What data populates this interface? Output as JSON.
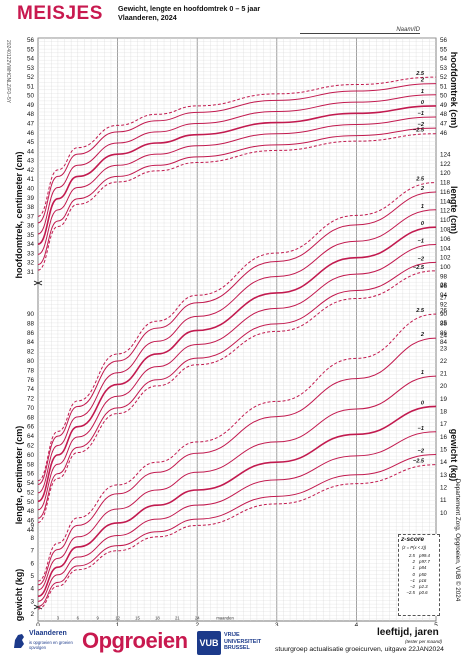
{
  "header": {
    "brand": "MEISJES",
    "subtitle_line1": "Gewicht, lengte en hoofdomtrek 0 – 5 jaar",
    "subtitle_line2": "Vlaanderen, 2024",
    "name_field": "Naam/ID",
    "side_code": "20240122VWHCNLZ/F0–5Y"
  },
  "axes": {
    "left_head": "hoofdomtrek, centimeter (cm)",
    "left_length": "lengte, centimeter (cm)",
    "left_weight": "gewicht (kg)",
    "right_head": "hoofdomtrek (cm)",
    "right_length": "lengte (cm)",
    "right_weight": "gewicht (kg)",
    "right_credit": "Departement Zorg, Opgroeien, VUB © 2024",
    "x_label": "leeftijd, jaren",
    "x_label_sub": "(tester per maand)",
    "x_months_label": "maanden"
  },
  "zscore_box": {
    "title": "z-score",
    "subtitle": "(z = P(x < z))",
    "rows": [
      {
        "z": "2.5",
        "p": "p99.4"
      },
      {
        "z": "2",
        "p": "p97.7"
      },
      {
        "z": "1",
        "p": "p84"
      },
      {
        "z": "0",
        "p": "p50"
      },
      {
        "z": "−1",
        "p": "p16"
      },
      {
        "z": "−2",
        "p": "p2.3"
      },
      {
        "z": "−2.5",
        "p": "p0.6"
      }
    ]
  },
  "footer": {
    "flanders_name": "Vlaanderen",
    "flanders_sub": "is opgroeien en groeien opvolgen",
    "opgroeien": "Opgroeien",
    "vub_logo": "VUB",
    "vub_text_1": "VRIJE",
    "vub_text_2": "UNIVERSITEIT",
    "vub_text_3": "BRUSSEL",
    "credit_line1": "stuurgroep actualisatie groeicurven, uitgave 22JAN2024",
    "credit_line2": ""
  },
  "colors": {
    "brand": "#c8194f",
    "curve": "#c21a4f",
    "grid": "#d9d9d9",
    "grid_major": "#8a8a8a"
  },
  "chart_data": [
    {
      "type": "line",
      "title": "hoofdomtrek",
      "xlabel": "leeftijd, jaren",
      "ylabel": "hoofdomtrek (cm)",
      "xlim": [
        0,
        5
      ],
      "ylim": [
        31,
        56
      ],
      "x_ticks": [
        0,
        1,
        2,
        3,
        4,
        5
      ],
      "y_ticks": [
        31,
        32,
        33,
        34,
        35,
        36,
        37,
        38,
        39,
        40,
        41,
        42,
        43,
        44,
        45,
        46,
        47,
        48,
        49,
        50,
        51,
        52,
        53,
        54,
        55,
        56
      ],
      "x": [
        0,
        0.25,
        0.5,
        1,
        1.5,
        2,
        3,
        4,
        5
      ],
      "series": [
        {
          "name": "2.5",
          "values": [
            37.0,
            42.0,
            44.4,
            46.8,
            48.0,
            48.9,
            50.2,
            51.2,
            52.0
          ]
        },
        {
          "name": "2",
          "values": [
            36.3,
            41.3,
            43.7,
            46.1,
            47.3,
            48.2,
            49.5,
            50.5,
            51.3
          ]
        },
        {
          "name": "1",
          "values": [
            35.1,
            40.1,
            42.5,
            44.9,
            46.1,
            47.0,
            48.3,
            49.3,
            50.1
          ]
        },
        {
          "name": "0",
          "values": [
            34.0,
            38.9,
            41.3,
            43.7,
            44.9,
            45.8,
            47.1,
            48.1,
            48.9
          ]
        },
        {
          "name": "−1",
          "values": [
            32.9,
            37.7,
            40.1,
            42.5,
            43.7,
            44.6,
            45.9,
            46.9,
            47.7
          ]
        },
        {
          "name": "−2",
          "values": [
            31.8,
            36.5,
            38.9,
            41.3,
            42.5,
            43.4,
            44.7,
            45.7,
            46.5
          ]
        },
        {
          "name": "−2.5",
          "values": [
            31.2,
            35.9,
            38.3,
            40.7,
            41.9,
            42.8,
            44.1,
            45.1,
            45.9
          ]
        }
      ]
    },
    {
      "type": "line",
      "title": "lengte",
      "xlabel": "leeftijd, jaren",
      "ylabel": "lengte (cm)",
      "xlim": [
        0,
        5
      ],
      "ylim": [
        44,
        126
      ],
      "y_ticks_left": [
        44,
        46,
        48,
        50,
        52,
        54,
        56,
        58,
        60,
        62,
        64,
        66,
        68,
        70,
        72,
        74,
        76,
        78,
        80,
        82,
        84,
        86,
        88,
        90
      ],
      "y_ticks_right": [
        84,
        86,
        88,
        90,
        92,
        94,
        96,
        98,
        100,
        102,
        104,
        106,
        108,
        110,
        112,
        114,
        116,
        118,
        120,
        122,
        124
      ],
      "x": [
        0,
        0.25,
        0.5,
        1,
        1.5,
        2,
        3,
        4,
        5
      ],
      "series": [
        {
          "name": "2.5",
          "values": [
            54.5,
            65.0,
            71.5,
            81.5,
            88.5,
            94.0,
            103.0,
            111.0,
            118.0
          ]
        },
        {
          "name": "2",
          "values": [
            53.7,
            64.0,
            70.3,
            80.0,
            87.0,
            92.4,
            101.2,
            109.0,
            116.0
          ]
        },
        {
          "name": "1",
          "values": [
            51.9,
            62.0,
            68.1,
            77.5,
            84.2,
            89.5,
            98.0,
            105.5,
            112.2
          ]
        },
        {
          "name": "0",
          "values": [
            50.1,
            60.0,
            66.0,
            75.0,
            81.5,
            86.5,
            94.5,
            102.0,
            108.5
          ]
        },
        {
          "name": "−1",
          "values": [
            48.3,
            58.0,
            63.8,
            72.5,
            78.8,
            83.5,
            91.2,
            98.5,
            104.8
          ]
        },
        {
          "name": "−2",
          "values": [
            46.5,
            56.0,
            61.6,
            70.0,
            76.0,
            80.6,
            87.9,
            95.0,
            101.0
          ]
        },
        {
          "name": "−2.5",
          "values": [
            45.6,
            55.0,
            60.5,
            68.8,
            74.7,
            79.2,
            86.3,
            93.3,
            99.2
          ]
        }
      ]
    },
    {
      "type": "line",
      "title": "gewicht",
      "xlabel": "leeftijd, jaren",
      "ylabel": "gewicht (kg)",
      "xlim": [
        0,
        5
      ],
      "ylim": [
        2,
        28
      ],
      "y_ticks_left": [
        2,
        3,
        4,
        5,
        6,
        7,
        8,
        9
      ],
      "y_ticks_right": [
        4,
        5,
        6,
        7,
        8,
        9,
        10,
        11,
        12,
        13,
        14,
        15,
        16,
        17,
        18,
        19,
        20,
        21,
        22,
        23,
        24,
        25,
        26,
        27,
        28
      ],
      "x": [
        0,
        0.25,
        0.5,
        1,
        1.5,
        2,
        3,
        4,
        5
      ],
      "series": [
        {
          "name": "2.5",
          "values": [
            4.6,
            7.6,
            9.6,
            12.2,
            14.0,
            15.6,
            18.8,
            22.2,
            25.7
          ]
        },
        {
          "name": "2",
          "values": [
            4.3,
            7.1,
            9.0,
            11.5,
            13.2,
            14.7,
            17.6,
            20.6,
            23.8
          ]
        },
        {
          "name": "1",
          "values": [
            3.9,
            6.4,
            8.1,
            10.3,
            11.8,
            13.2,
            15.6,
            18.2,
            20.8
          ]
        },
        {
          "name": "0",
          "values": [
            3.4,
            5.7,
            7.3,
            9.2,
            10.6,
            11.8,
            14.0,
            16.2,
            18.4
          ]
        },
        {
          "name": "−1",
          "values": [
            3.0,
            5.1,
            6.5,
            8.2,
            9.5,
            10.6,
            12.6,
            14.5,
            16.4
          ]
        },
        {
          "name": "−2",
          "values": [
            2.6,
            4.5,
            5.8,
            7.4,
            8.5,
            9.5,
            11.3,
            13.0,
            14.6
          ]
        },
        {
          "name": "−2.5",
          "values": [
            2.4,
            4.2,
            5.5,
            7.0,
            8.1,
            9.0,
            10.7,
            12.3,
            13.8
          ]
        }
      ]
    }
  ],
  "x_month_ticks": [
    "3",
    "6",
    "9",
    "12",
    "15",
    "18",
    "21",
    "24"
  ]
}
